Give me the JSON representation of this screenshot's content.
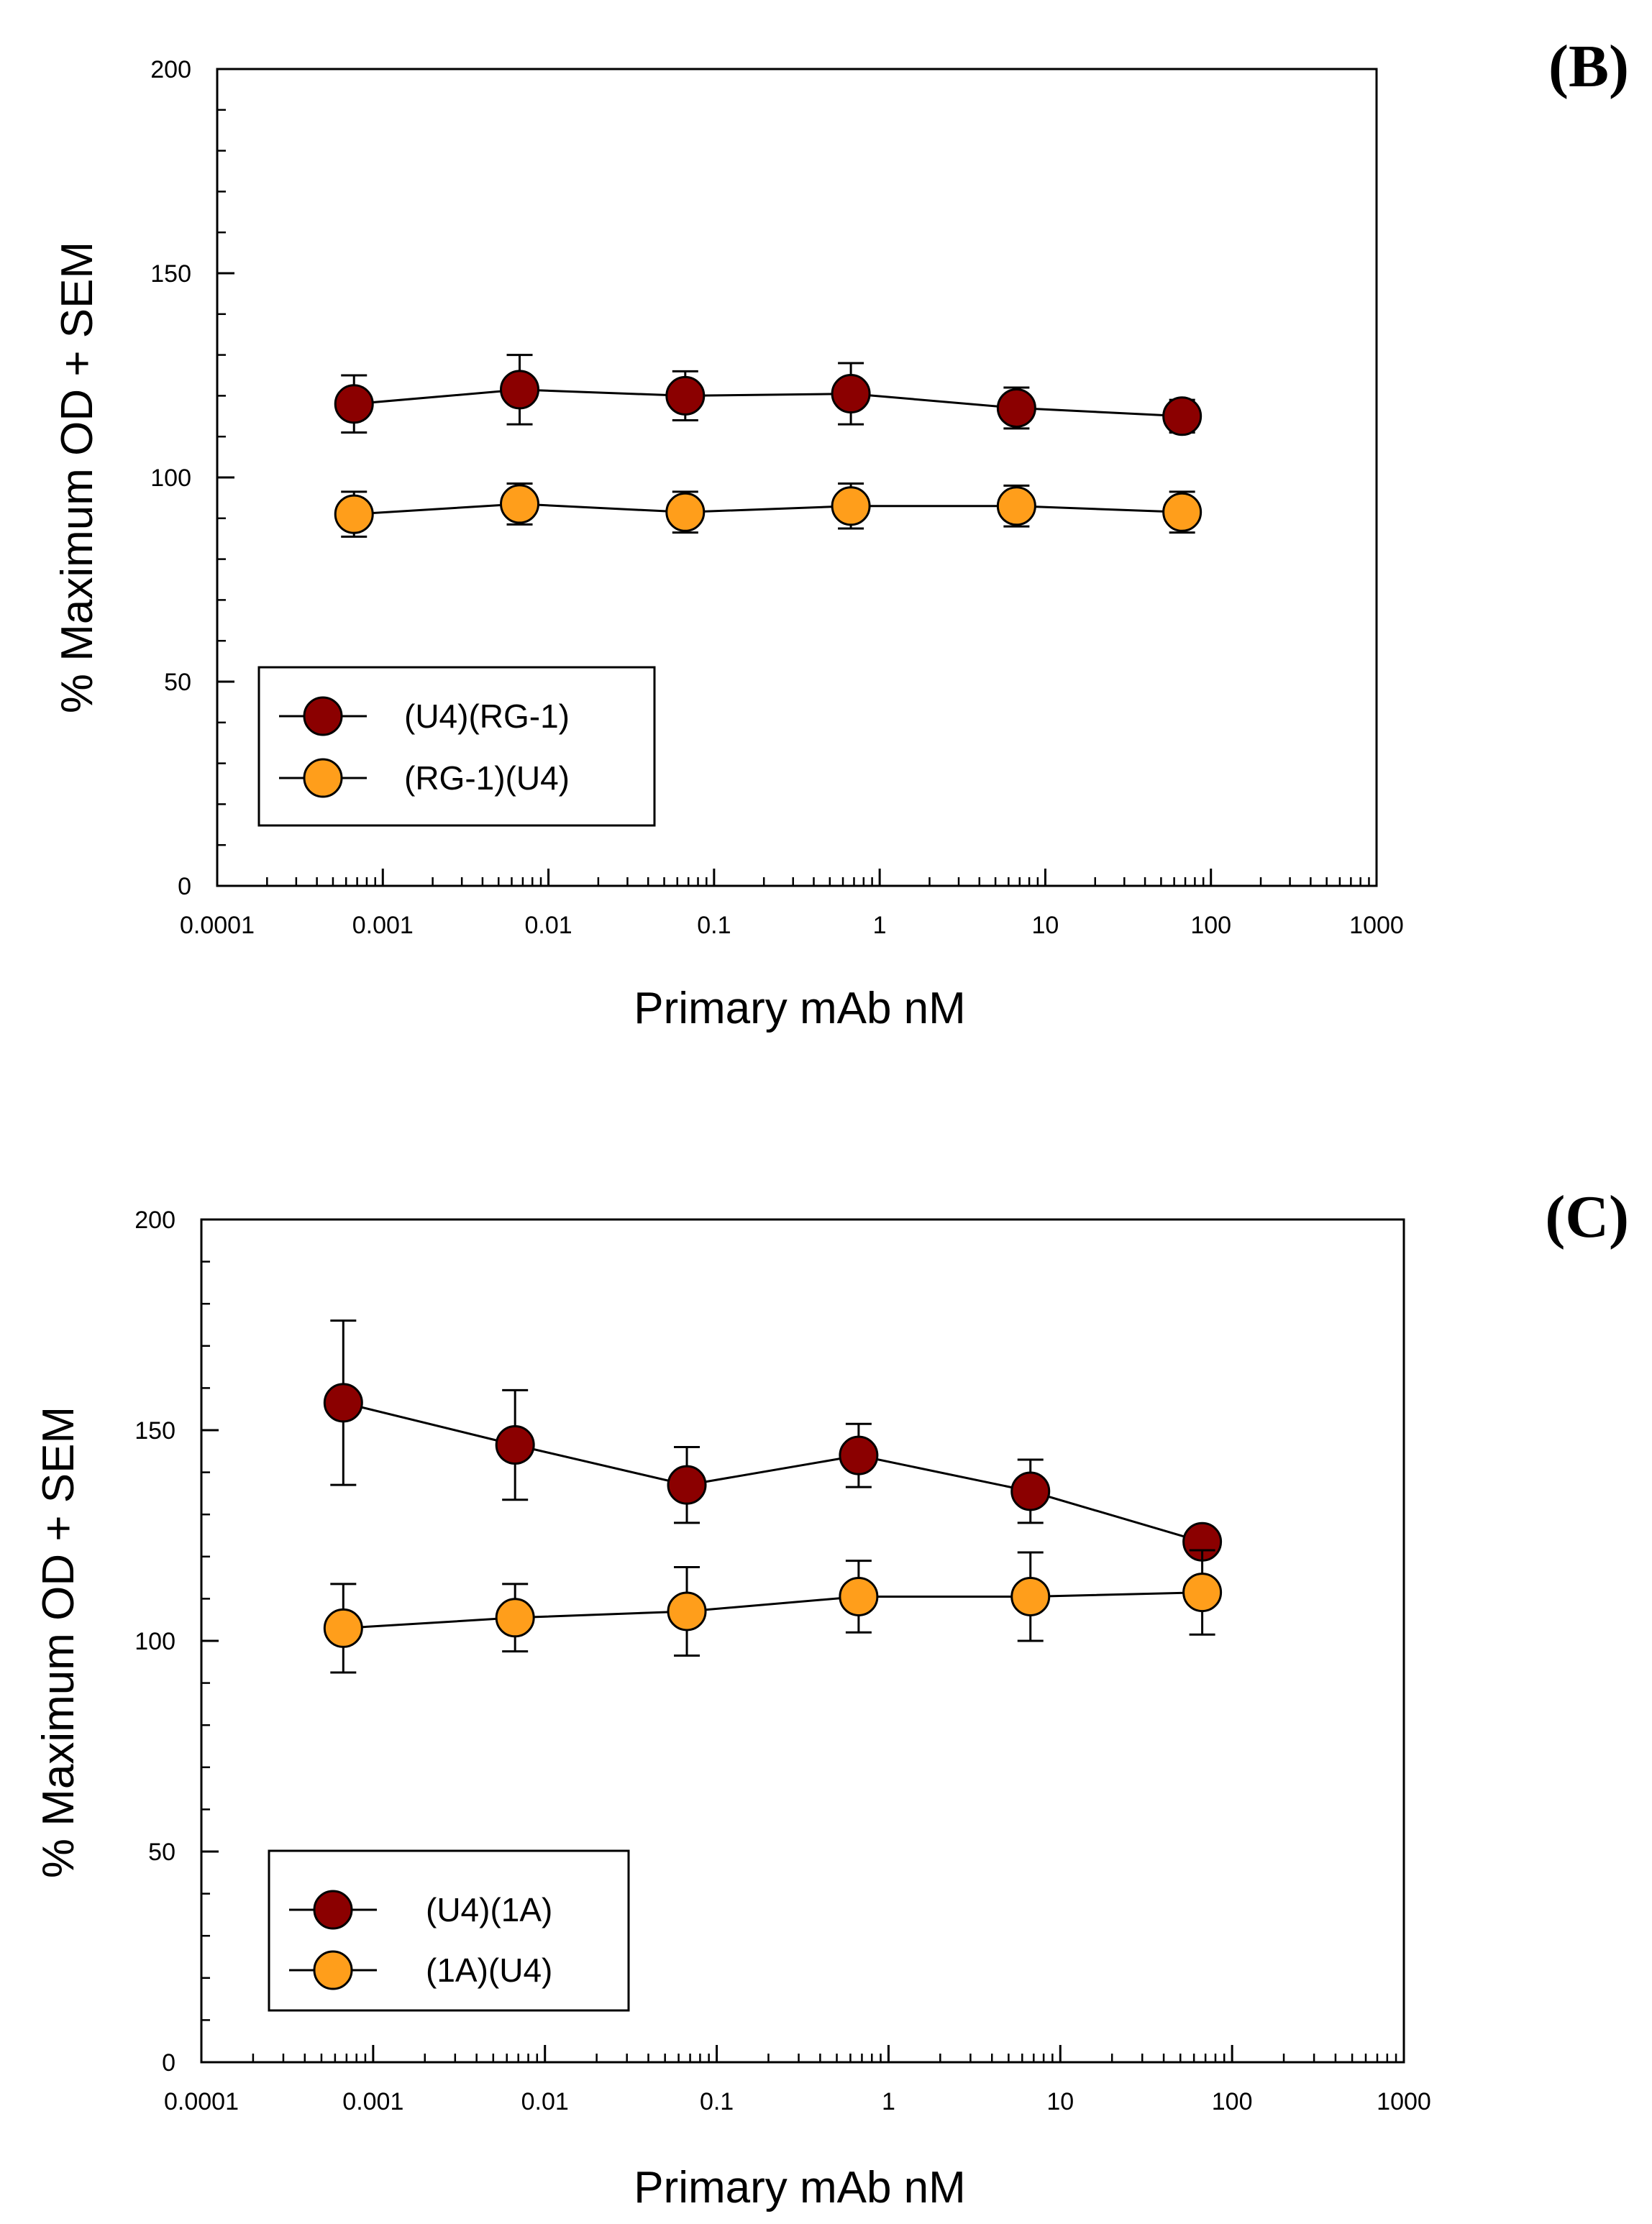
{
  "colors": {
    "series_dark": "#8B0000",
    "series_orange": "#FF9E1B",
    "axis": "#000000",
    "background": "#FFFFFF"
  },
  "chart_data": [
    {
      "panel": "(B)",
      "type": "line",
      "xscale": "log",
      "xlabel": "Primary mAb nM",
      "ylabel": "% Maximum OD + SEM",
      "xlim": [
        0.0001,
        1000
      ],
      "ylim": [
        0,
        200
      ],
      "xticks": [
        0.0001,
        0.001,
        0.01,
        0.1,
        1,
        10,
        100,
        1000
      ],
      "xtick_labels": [
        "0.0001",
        "0.001",
        "0.01",
        "0.1",
        "1",
        "10",
        "100",
        "1000"
      ],
      "yticks": [
        0,
        50,
        100,
        150,
        200
      ],
      "ytick_labels": [
        "0",
        "50",
        "100",
        "150",
        "200"
      ],
      "x": [
        0.00067,
        0.0067,
        0.067,
        0.67,
        6.7,
        67
      ],
      "series": [
        {
          "name": "(U4)(RG-1)",
          "color": "#8B0000",
          "values": [
            118,
            121.5,
            120,
            120.5,
            117,
            115
          ],
          "errors": [
            7,
            8.5,
            6,
            7.5,
            5,
            4
          ]
        },
        {
          "name": "(RG-1)(U4)",
          "color": "#FF9E1B",
          "values": [
            91,
            93.5,
            91.5,
            93,
            93,
            91.5
          ],
          "errors": [
            5.5,
            5,
            5,
            5.5,
            5,
            5
          ]
        }
      ],
      "legend_position": "lower-left",
      "grid": false
    },
    {
      "panel": "(C)",
      "type": "line",
      "xscale": "log",
      "xlabel": "Primary mAb nM",
      "ylabel": "% Maximum OD + SEM",
      "xlim": [
        0.0001,
        1000
      ],
      "ylim": [
        0,
        200
      ],
      "xticks": [
        0.0001,
        0.001,
        0.01,
        0.1,
        1,
        10,
        100,
        1000
      ],
      "xtick_labels": [
        "0.0001",
        "0.001",
        "0.01",
        "0.1",
        "1",
        "10",
        "100",
        "1000"
      ],
      "yticks": [
        0,
        50,
        100,
        150,
        200
      ],
      "ytick_labels": [
        "0",
        "50",
        "100",
        "150",
        "200"
      ],
      "x": [
        0.00067,
        0.0067,
        0.067,
        0.67,
        6.7,
        67
      ],
      "series": [
        {
          "name": "(U4)(1A)",
          "color": "#8B0000",
          "values": [
            156.5,
            146.5,
            137,
            144,
            135.5,
            123.5
          ],
          "errors": [
            19.5,
            13,
            9,
            7.5,
            7.5,
            2
          ]
        },
        {
          "name": "(1A)(U4)",
          "color": "#FF9E1B",
          "values": [
            103,
            105.5,
            107,
            110.5,
            110.5,
            111.5
          ],
          "errors": [
            10.5,
            8,
            10.5,
            8.5,
            10.5,
            10
          ]
        }
      ],
      "legend_position": "lower-left",
      "grid": false
    }
  ]
}
